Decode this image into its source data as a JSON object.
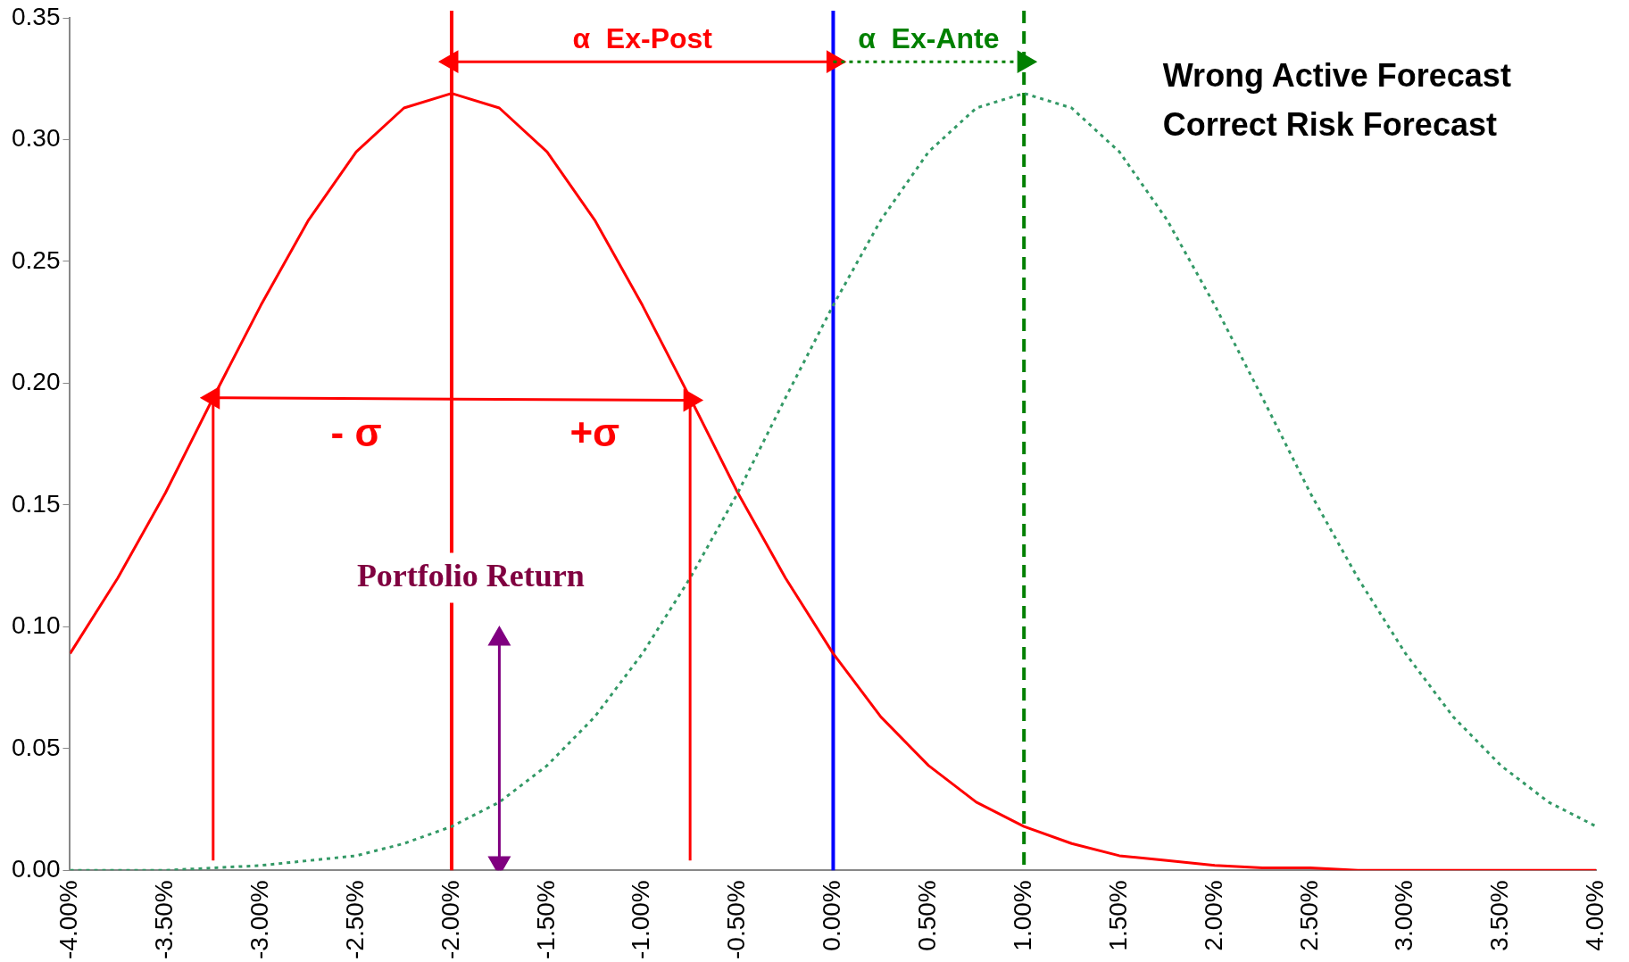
{
  "chart_data": {
    "type": "line",
    "xlim": [
      -4,
      4
    ],
    "ylim": [
      0,
      0.35
    ],
    "xticks": [
      {
        "value": -4,
        "label": "-4.00%"
      },
      {
        "value": -3.5,
        "label": "-3.50%"
      },
      {
        "value": -3,
        "label": "-3.00%"
      },
      {
        "value": -2.5,
        "label": "-2.50%"
      },
      {
        "value": -2,
        "label": "-2.00%"
      },
      {
        "value": -1.5,
        "label": "-1.50%"
      },
      {
        "value": -1,
        "label": "-1.00%"
      },
      {
        "value": -0.5,
        "label": "-0.50%"
      },
      {
        "value": 0,
        "label": "0.00%"
      },
      {
        "value": 0.5,
        "label": "0.50%"
      },
      {
        "value": 1,
        "label": "1.00%"
      },
      {
        "value": 1.5,
        "label": "1.50%"
      },
      {
        "value": 2,
        "label": "2.00%"
      },
      {
        "value": 2.5,
        "label": "2.50%"
      },
      {
        "value": 3,
        "label": "3.00%"
      },
      {
        "value": 3.5,
        "label": "3.50%"
      },
      {
        "value": 4,
        "label": "4.00%"
      }
    ],
    "yticks": [
      {
        "value": 0,
        "label": "0.00"
      },
      {
        "value": 0.05,
        "label": "0.05"
      },
      {
        "value": 0.1,
        "label": "0.10"
      },
      {
        "value": 0.15,
        "label": "0.15"
      },
      {
        "value": 0.2,
        "label": "0.20"
      },
      {
        "value": 0.25,
        "label": "0.25"
      },
      {
        "value": 0.3,
        "label": "0.30"
      },
      {
        "value": 0.35,
        "label": "0.35"
      }
    ],
    "grid": false,
    "legend": false,
    "series": [
      {
        "color": "#ff0000",
        "line_style": "solid",
        "marker": "none",
        "x": [
          -4,
          -3.75,
          -3.5,
          -3.25,
          -3,
          -2.75,
          -2.5,
          -2.25,
          -2,
          -1.75,
          -1.5,
          -1.25,
          -1,
          -0.75,
          -0.5,
          -0.25,
          0,
          0.25,
          0.5,
          0.75,
          1,
          1.25,
          1.5,
          1.75,
          2,
          2.25,
          2.5,
          2.75,
          3,
          3.25,
          3.5,
          3.75,
          4
        ],
        "values": [
          0.089,
          0.12,
          0.155,
          0.194,
          0.232,
          0.267,
          0.295,
          0.313,
          0.319,
          0.313,
          0.295,
          0.267,
          0.232,
          0.194,
          0.155,
          0.12,
          0.089,
          0.063,
          0.043,
          0.028,
          0.018,
          0.011,
          0.006,
          0.004,
          0.002,
          0.001,
          0.001,
          0,
          0,
          0,
          0,
          0,
          0
        ]
      },
      {
        "color": "#339966",
        "line_style": "dotted",
        "marker": "none",
        "x": [
          -4,
          -3.75,
          -3.5,
          -3.25,
          -3,
          -2.75,
          -2.5,
          -2.25,
          -2,
          -1.75,
          -1.5,
          -1.25,
          -1,
          -0.75,
          -0.5,
          -0.25,
          0,
          0.25,
          0.5,
          0.75,
          1,
          1.25,
          1.5,
          1.75,
          2,
          2.25,
          2.5,
          2.75,
          3,
          3.25,
          3.5,
          3.75,
          4
        ],
        "values": [
          0,
          0,
          0,
          0.001,
          0.002,
          0.004,
          0.006,
          0.011,
          0.018,
          0.028,
          0.043,
          0.063,
          0.089,
          0.12,
          0.155,
          0.194,
          0.232,
          0.267,
          0.295,
          0.313,
          0.319,
          0.313,
          0.295,
          0.267,
          0.232,
          0.194,
          0.155,
          0.12,
          0.089,
          0.063,
          0.043,
          0.028,
          0.018
        ]
      },
      {
        "color": "#ff0000",
        "line_style": "solid",
        "marker": "none",
        "x": [
          -3.25,
          -3.25
        ],
        "values": [
          0.004,
          0.194
        ]
      },
      {
        "color": "#ff0000",
        "line_style": "solid",
        "marker": "none",
        "x": [
          -0.75,
          -0.75
        ],
        "values": [
          0.004,
          0.194
        ]
      },
      {
        "color": "#ff0000",
        "line_style": "solid",
        "marker": "triangle",
        "x": [
          -2,
          0
        ],
        "values": [
          0.332,
          0.332
        ]
      },
      {
        "color": "#008000",
        "line_style": "dotted",
        "marker": "triangle",
        "x": [
          0,
          1
        ],
        "values": [
          0.332,
          0.332
        ]
      },
      {
        "color": "#ff0000",
        "line_style": "solid",
        "marker": "triangle",
        "x": [
          -3.25,
          -0.75
        ],
        "values": [
          0.194,
          0.193
        ]
      },
      {
        "color": "#800080",
        "line_style": "solid",
        "marker": "triangle",
        "x": [
          -1.75,
          -1.75
        ],
        "values": [
          0.095,
          0.003
        ]
      }
    ],
    "ref_lines": [
      {
        "axis": "x",
        "value": -2,
        "color": "#ff0000",
        "line_style": "solid"
      },
      {
        "axis": "x",
        "value": 0,
        "color": "#0000ff",
        "line_style": "solid"
      },
      {
        "axis": "x",
        "value": 1,
        "color": "#008000",
        "line_style": "dashed"
      }
    ],
    "annotations": [
      "α  Ex-Post",
      "α  Ex-Ante",
      "- σ",
      "+σ",
      "Portfolio Return",
      "Wrong Active Forecast",
      "Correct Risk Forecast"
    ]
  }
}
